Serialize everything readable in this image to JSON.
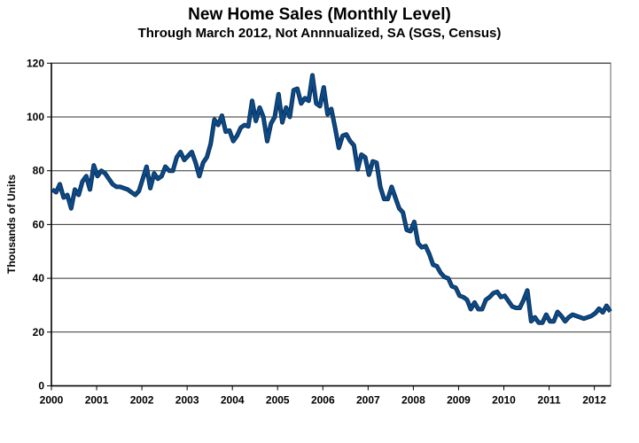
{
  "chart_data": {
    "type": "line",
    "title": "New Home Sales (Monthly Level)",
    "subtitle": "Through March 2012, Not Annnualized, SA (SGS, Census)",
    "xlabel": "",
    "ylabel": "Thousands of Units",
    "ylim": [
      0,
      120
    ],
    "yticks": [
      0,
      20,
      40,
      60,
      80,
      100,
      120
    ],
    "xticks": [
      "2000",
      "2001",
      "2002",
      "2003",
      "2004",
      "2005",
      "2006",
      "2007",
      "2008",
      "2009",
      "2010",
      "2011",
      "2012"
    ],
    "x_start": "2000-01",
    "x_frequency": "monthly",
    "grid": true,
    "series": [
      {
        "name": "New Home Sales",
        "color": "#0d4a86",
        "values": [
          73,
          72,
          75,
          70,
          71,
          66,
          73,
          71,
          76,
          78,
          73,
          82,
          78,
          80,
          79,
          77,
          75,
          74,
          74,
          73.5,
          73,
          72,
          71,
          72.5,
          77,
          81.5,
          73.5,
          79,
          77,
          78,
          81.5,
          80,
          80,
          85,
          87,
          84,
          85.5,
          87,
          83,
          78,
          83,
          85,
          90,
          99,
          97,
          100.5,
          94.5,
          95,
          91,
          93,
          96,
          97,
          96.5,
          106,
          98.5,
          103.5,
          100,
          91,
          97.5,
          100,
          108.5,
          98,
          103.5,
          100,
          110,
          110.5,
          105,
          107,
          106,
          115.5,
          105,
          104,
          111,
          101,
          103,
          96,
          88.5,
          93,
          93.5,
          91,
          89.5,
          80.5,
          86,
          85,
          78.5,
          83.5,
          83,
          74,
          69.5,
          69.5,
          74,
          70,
          66,
          64.5,
          58,
          57.5,
          61,
          53,
          51.5,
          52,
          49,
          45,
          44.5,
          42,
          40.5,
          40,
          37,
          36.5,
          33.5,
          33,
          32,
          28.5,
          31,
          28.5,
          28.5,
          32,
          33,
          34.5,
          35,
          33,
          33.5,
          31.5,
          29.5,
          29,
          29,
          32,
          35.5,
          24,
          25.5,
          23.5,
          23.5,
          26.5,
          24,
          24,
          27.5,
          26,
          24,
          25.5,
          26.5,
          26,
          25.5,
          25,
          25.5,
          26,
          27,
          28.7,
          27.3,
          29.8,
          27.6
        ]
      }
    ]
  }
}
